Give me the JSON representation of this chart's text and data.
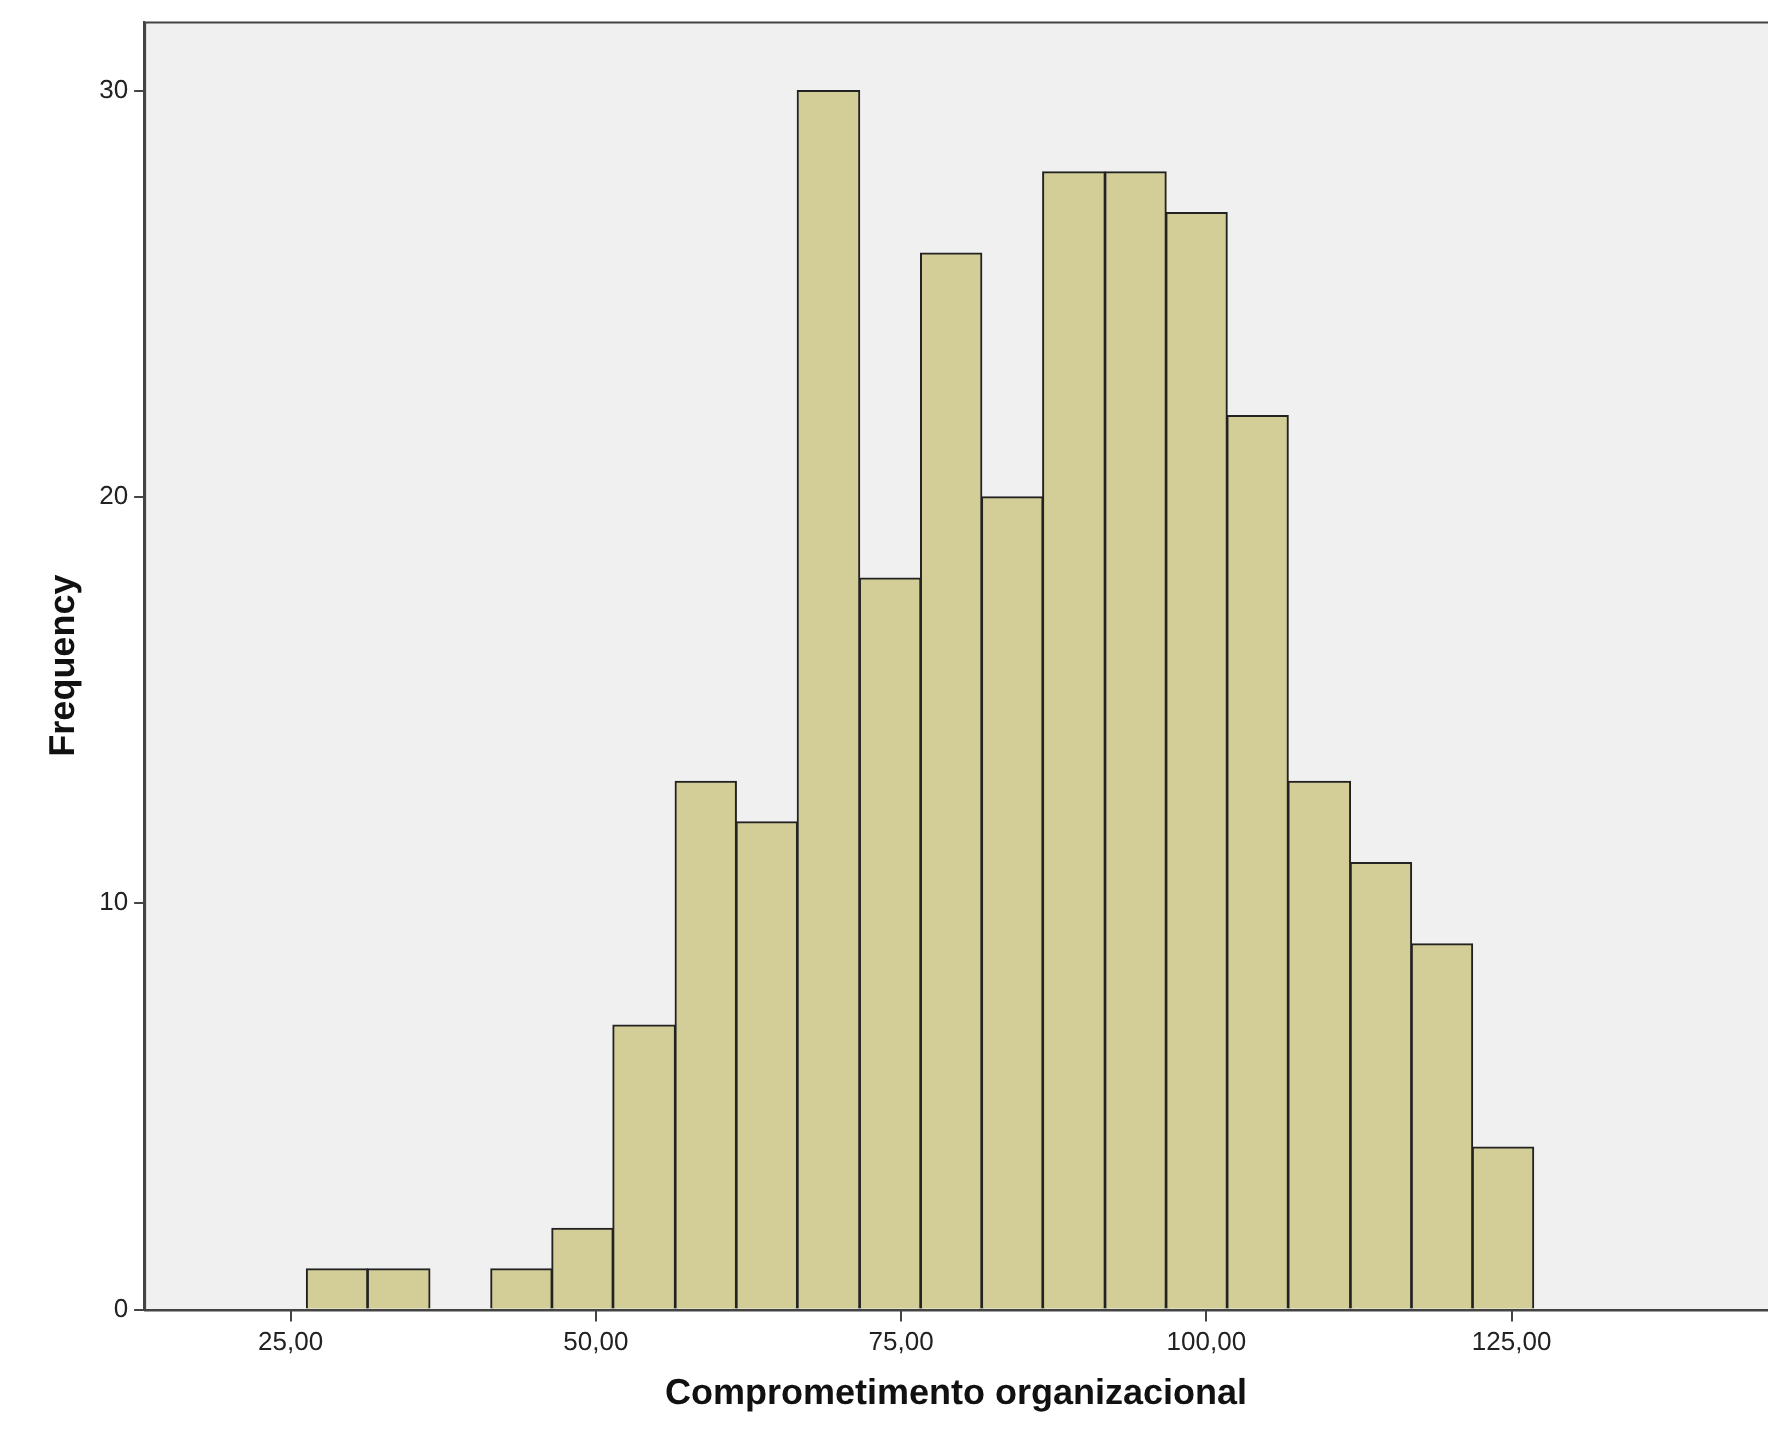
{
  "chart_data": {
    "type": "histogram",
    "xlabel": "Comprometimento organizacional",
    "ylabel": "Frequency",
    "bins": [
      26.3,
      31.3,
      36.4,
      41.4,
      46.4,
      51.4,
      56.5,
      61.5,
      66.5,
      71.6,
      76.6,
      81.6,
      86.6,
      91.7,
      96.7,
      101.7,
      106.7,
      111.8,
      116.8,
      121.8,
      126.8
    ],
    "values": [
      1,
      1,
      0,
      1,
      2,
      7,
      13,
      12,
      30,
      18,
      26,
      20,
      28,
      28,
      27,
      22,
      13,
      11,
      9,
      4
    ],
    "color": "#d3ce97",
    "xlim": [
      13,
      146
    ],
    "ylim": [
      0,
      31.7
    ],
    "xticks": [
      {
        "value": 25,
        "label": "25,00"
      },
      {
        "value": 50,
        "label": "50,00"
      },
      {
        "value": 75,
        "label": "75,00"
      },
      {
        "value": 100,
        "label": "100,00"
      },
      {
        "value": 125,
        "label": "125,00"
      }
    ],
    "yticks": [
      0,
      10,
      20,
      30
    ],
    "grid": false,
    "legend": false
  }
}
